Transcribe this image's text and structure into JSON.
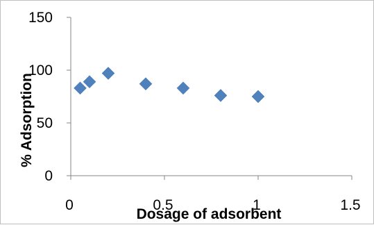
{
  "chart_data": {
    "type": "scatter",
    "xlabel": "Dosage of adsorbent",
    "ylabel": "% Adsorption",
    "xlim": [
      0,
      1.5
    ],
    "ylim": [
      0,
      150
    ],
    "xticks": [
      "0",
      "0.5",
      "1",
      "1.5"
    ],
    "yticks": [
      "0",
      "50",
      "100",
      "150"
    ],
    "grid": false,
    "legend": "none",
    "series": [
      {
        "color": "#4f81bd",
        "marker": "diamond",
        "points": [
          {
            "x": 0.05,
            "y": 83
          },
          {
            "x": 0.1,
            "y": 89
          },
          {
            "x": 0.2,
            "y": 97
          },
          {
            "x": 0.4,
            "y": 87
          },
          {
            "x": 0.6,
            "y": 83
          },
          {
            "x": 0.8,
            "y": 76
          },
          {
            "x": 1.0,
            "y": 75
          }
        ]
      }
    ]
  }
}
